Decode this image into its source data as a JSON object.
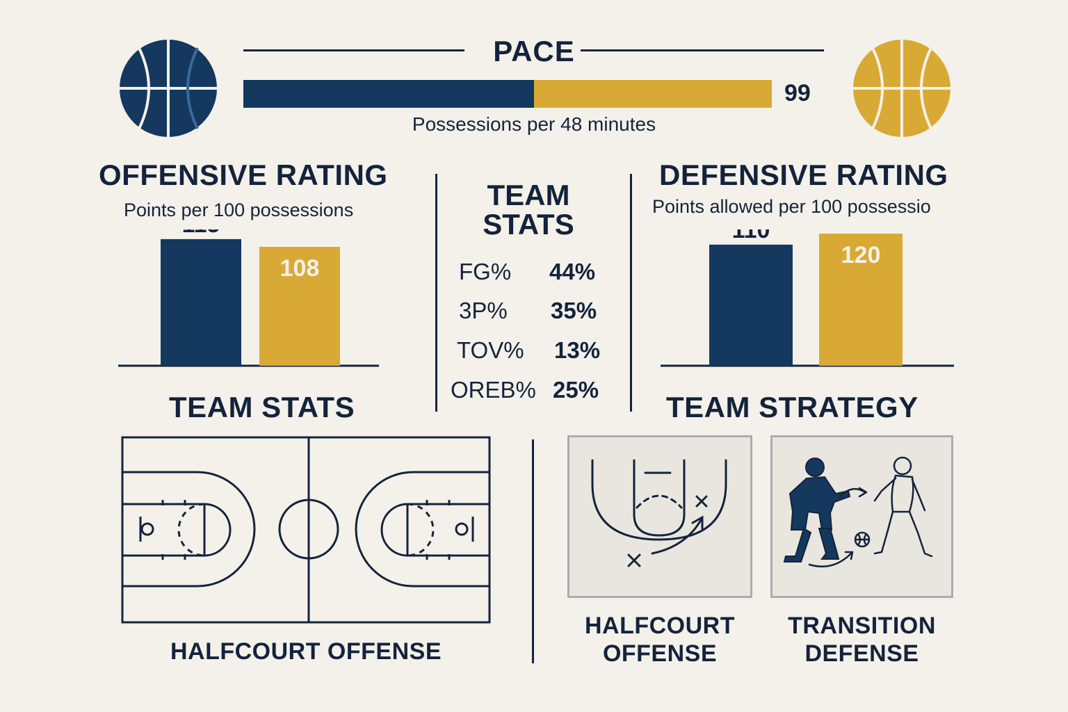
{
  "colors": {
    "navy": "#14385e",
    "gold": "#d8aa35",
    "ink": "#14233c",
    "background": "#f4f1ea"
  },
  "icons": {
    "left": "basketball-icon",
    "right": "basketball-icon"
  },
  "pace": {
    "title": "PACE",
    "value": "99",
    "subtitle": "Possessions per 48 minutes",
    "navy_share": 0.55
  },
  "offensive": {
    "title": "OFFENSIVE RATING",
    "subtitle": "Points per 100 possessions"
  },
  "defensive": {
    "title": "DEFENSIVE RATING",
    "subtitle": "Points allowed per 100 possessio"
  },
  "center_stats": {
    "title_line1": "TEAM",
    "title_line2": "STATS",
    "rows": [
      {
        "label": "FG%",
        "value": "44%"
      },
      {
        "label": "3P%",
        "value": "35%"
      },
      {
        "label": "TOV%",
        "value": "13%"
      },
      {
        "label": "OREB%",
        "value": "25%"
      }
    ]
  },
  "bottom_left": {
    "title": "TEAM STATS",
    "caption": "HALFCOURT OFFENSE"
  },
  "bottom_right": {
    "title": "TEAM STRATEGY",
    "panels": [
      {
        "caption_line1": "HALFCOURT",
        "caption_line2": "OFFENSE",
        "icon": "play-diagram-icon"
      },
      {
        "caption_line1": "TRANSITION",
        "caption_line2": "DEFENSE",
        "icon": "players-icon"
      }
    ]
  },
  "chart_data": [
    {
      "type": "bar",
      "title": "OFFENSIVE RATING",
      "subtitle": "Points per 100 possessions",
      "categories": [
        "",
        ""
      ],
      "values": [
        115,
        108
      ],
      "colors": [
        "#14385e",
        "#d8aa35"
      ],
      "ylim": [
        0,
        120
      ]
    },
    {
      "type": "bar",
      "title": "DEFENSIVE RATING",
      "subtitle": "Points allowed per 100 possessio",
      "categories": [
        "",
        ""
      ],
      "values": [
        110,
        120
      ],
      "colors": [
        "#14385e",
        "#d8aa35"
      ],
      "ylim": [
        0,
        120
      ]
    }
  ]
}
